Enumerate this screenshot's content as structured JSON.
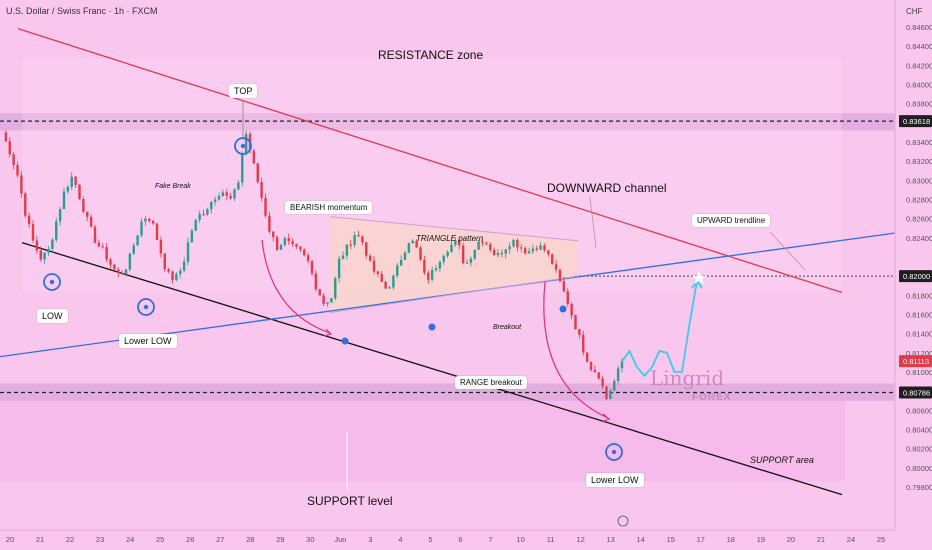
{
  "header": {
    "symbol_line": "U.S. Dollar / Swiss Franc · 1h · FXCM",
    "currency": "CHF"
  },
  "chart_data": {
    "type": "candlestick",
    "y_ticks": [
      "0.84600",
      "0.84400",
      "0.84200",
      "0.84000",
      "0.83800",
      "0.83400",
      "0.83200",
      "0.83000",
      "0.82800",
      "0.82600",
      "0.82400",
      "0.81800",
      "0.81600",
      "0.81400",
      "0.81200",
      "0.81000",
      "0.80600",
      "0.80400",
      "0.80200",
      "0.80000",
      "0.79800"
    ],
    "price_labels": [
      {
        "value": "0.83618",
        "style": "dark"
      },
      {
        "value": "0.82000",
        "style": "dark"
      },
      {
        "value": "0.81113",
        "style": "red"
      },
      {
        "value": "0.80786",
        "style": "dark"
      }
    ],
    "x_ticks": [
      "20",
      "21",
      "22",
      "23",
      "24",
      "25",
      "26",
      "27",
      "28",
      "29",
      "30",
      "Jun",
      "3",
      "4",
      "5",
      "6",
      "7",
      "10",
      "11",
      "12",
      "13",
      "14",
      "15",
      "17",
      "18",
      "19",
      "20",
      "21",
      "24",
      "25"
    ],
    "price_path": [
      0.835,
      0.833,
      0.8305,
      0.8265,
      0.8235,
      0.8218,
      0.8228,
      0.826,
      0.829,
      0.8305,
      0.828,
      0.8255,
      0.8235,
      0.8225,
      0.821,
      0.82,
      0.8212,
      0.8238,
      0.8262,
      0.826,
      0.8232,
      0.8203,
      0.8196,
      0.821,
      0.8245,
      0.8262,
      0.827,
      0.8282,
      0.829,
      0.8278,
      0.8292,
      0.8352,
      0.8318,
      0.8285,
      0.825,
      0.823,
      0.8238,
      0.823,
      0.8225,
      0.8215,
      0.819,
      0.8172,
      0.8178,
      0.8218,
      0.823,
      0.8245,
      0.8235,
      0.821,
      0.8198,
      0.8186,
      0.82,
      0.8222,
      0.824,
      0.8226,
      0.8195,
      0.8206,
      0.8222,
      0.8231,
      0.8236,
      0.821,
      0.8226,
      0.824,
      0.8232,
      0.822,
      0.8229,
      0.8238,
      0.8231,
      0.8225,
      0.8232,
      0.8229,
      0.8216,
      0.8195,
      0.8175,
      0.815,
      0.8125,
      0.8105,
      0.8098,
      0.8072,
      0.809,
      0.8111
    ],
    "projection": [
      0.8111,
      0.8122,
      0.8105,
      0.8096,
      0.8105,
      0.8122,
      0.812,
      0.81,
      0.81,
      0.815,
      0.8195
    ],
    "zones": {
      "resistance": [
        0.837,
        0.8352
      ],
      "support": [
        0.8088,
        0.807
      ],
      "support_area_band": [
        0.807,
        0.7986
      ]
    },
    "levels": {
      "resistance_line": 0.83618,
      "breakout_line": 0.82,
      "current": 0.81113,
      "support_line": 0.80786
    },
    "lines": {
      "downward_channel_upper": [
        [
          0,
          0.8427
        ],
        [
          1,
          0.8183
        ]
      ],
      "downward_channel_lower": [
        [
          0,
          0.8235
        ],
        [
          1,
          0.7972
        ]
      ],
      "upward_trendline": [
        [
          0,
          0.8116
        ],
        [
          1,
          0.8245
        ]
      ],
      "triangle_upper": [
        [
          0,
          0.8262
        ],
        [
          1,
          0.8237
        ]
      ],
      "triangle_lower": [
        [
          0,
          0.8162
        ],
        [
          1,
          0.82
        ]
      ]
    },
    "annotations": {
      "resistance_zone": "RESISTANCE zone",
      "top": "TOP",
      "fake_break": "Fake Break",
      "bearish_momentum": "BEARISH momentum",
      "downward_channel": "DOWNWARD channel",
      "triangle_pattern": "TRIANGLE pattern",
      "upward_trendline": "UPWARD trendline",
      "low": "LOW",
      "lower_low_1": "Lower LOW",
      "breakout": "Breakout",
      "range_breakout": "RANGE breakout",
      "support_level": "SUPPORT level",
      "support_area": "SUPPORT area",
      "lower_low_2": "Lower LOW"
    },
    "watermark": {
      "main": "Lingrid",
      "sub": "FOREX"
    },
    "colors": {
      "background": "#f9c6ee",
      "zone": "#d8a2d9",
      "bull": "#2a9d8f",
      "bear": "#e23b4a",
      "channel_upper": "#e0394f",
      "channel_lower": "#111111",
      "trend": "#2f6fe0",
      "projection": "#3fc8ee",
      "arrow": "#d9337a"
    }
  }
}
